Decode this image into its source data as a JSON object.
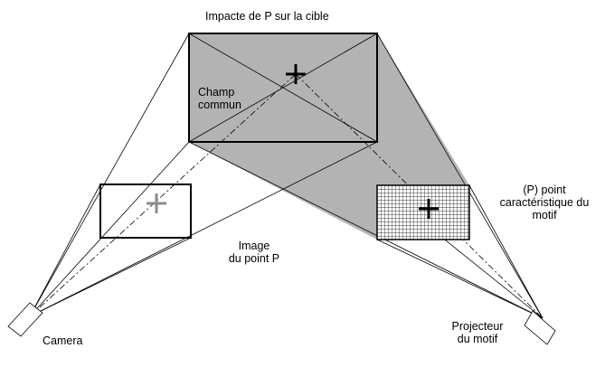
{
  "labels": {
    "title": "Impacte de P sur la cible",
    "common_field_line1": "Champ",
    "common_field_line2": "commun",
    "image_line1": "Image",
    "image_line2": "du point P",
    "point_line1": "(P) point",
    "point_line2": "caractéristique du",
    "point_line3": "motif",
    "camera": "Camera",
    "projector_line1": "Projecteur",
    "projector_line2": "du motif"
  },
  "colors": {
    "shade": "#b3b3b3",
    "stroke": "#000000",
    "grey_cross": "#8c8c8c"
  }
}
